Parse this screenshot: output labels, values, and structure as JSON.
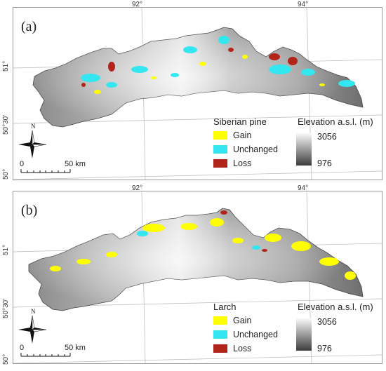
{
  "colors": {
    "gain": "#ffff00",
    "unchanged": "#33e6f0",
    "loss": "#b0241a",
    "frame": "#9a9a9a",
    "grid": "#b8b8b8"
  },
  "panels": [
    {
      "label": "(a)",
      "lon_ticks": [
        "92°",
        "94°"
      ],
      "lat_ticks": [
        "51°",
        "50°30'",
        "50°"
      ],
      "legend": {
        "title": "Siberian pine",
        "items": [
          {
            "label": "Gain",
            "color": "#ffff00"
          },
          {
            "label": "Unchanged",
            "color": "#33e6f0"
          },
          {
            "label": "Loss",
            "color": "#b0241a"
          }
        ]
      },
      "elevation": {
        "title": "Elevation a.s.l. (m)",
        "max": "3056",
        "min": "976"
      },
      "scalebar": {
        "zero": "0",
        "distance": "50 km"
      },
      "north": "N"
    },
    {
      "label": "(b)",
      "lon_ticks": [
        "92°",
        "94°"
      ],
      "lat_ticks": [
        "51°",
        "50°30'",
        "50°"
      ],
      "legend": {
        "title": "Larch",
        "items": [
          {
            "label": "Gain",
            "color": "#ffff00"
          },
          {
            "label": "Unchanged",
            "color": "#33e6f0"
          },
          {
            "label": "Loss",
            "color": "#b0241a"
          }
        ]
      },
      "elevation": {
        "title": "Elevation a.s.l. (m)",
        "max": "3056",
        "min": "976"
      },
      "scalebar": {
        "zero": "0",
        "distance": "50 km"
      },
      "north": "N"
    }
  ]
}
